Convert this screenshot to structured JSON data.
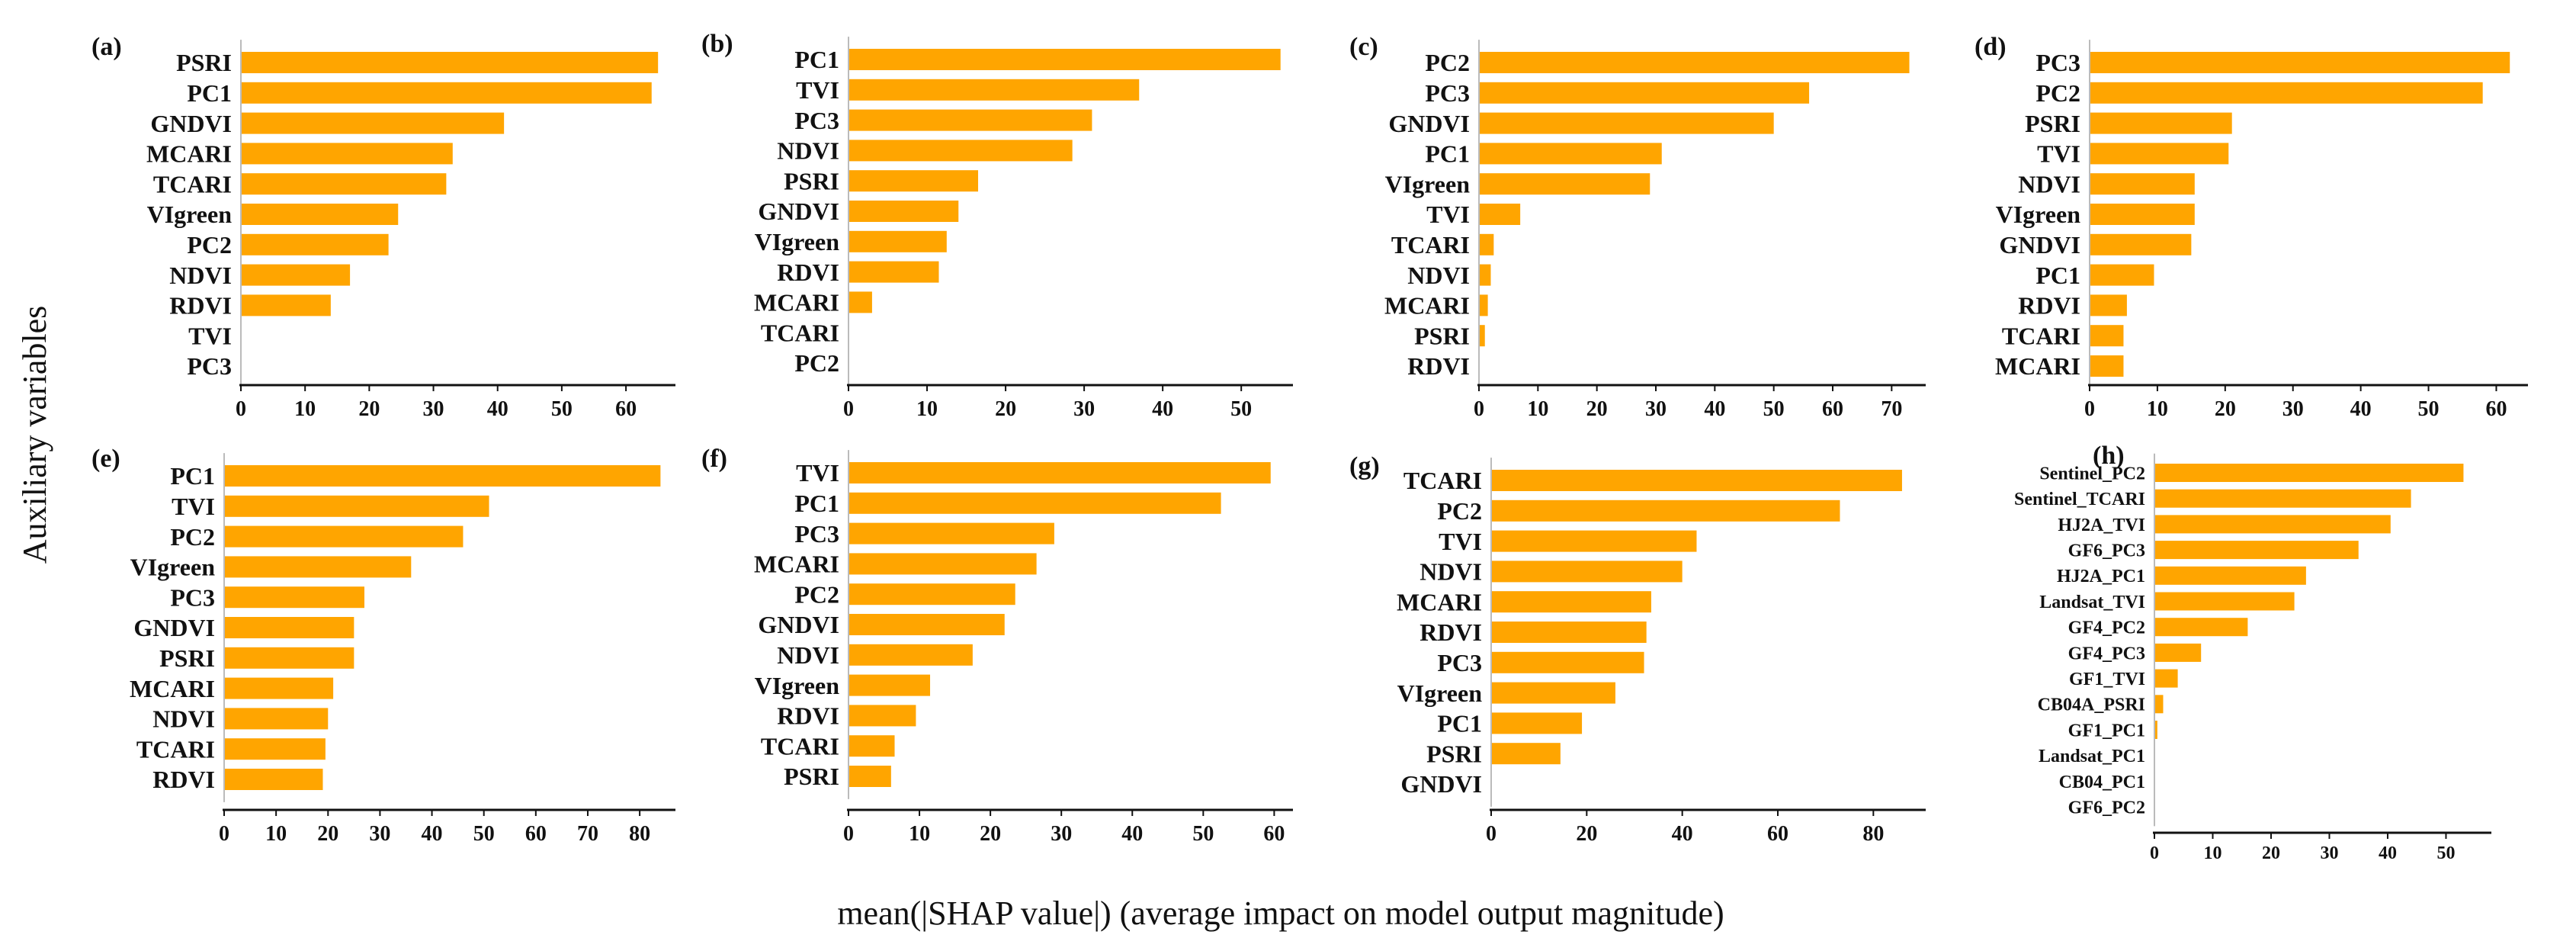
{
  "figure": {
    "ylabel": "Auxiliary variables",
    "xlabel": "mean(|SHAP value|) (average impact on model output magnitude)",
    "bar_color": "#FFA500",
    "axis_color": "#111111"
  },
  "chart_data": [
    {
      "type": "bar",
      "orientation": "horizontal",
      "panel": "(a)",
      "categories": [
        "PSRI",
        "PC1",
        "GNDVI",
        "MCARI",
        "TCARI",
        "VIgreen",
        "PC2",
        "NDVI",
        "RDVI",
        "TVI",
        "PC3"
      ],
      "values": [
        65,
        64,
        41,
        33,
        32,
        24.5,
        23,
        17,
        14,
        0,
        0
      ],
      "xlim": [
        0,
        67
      ],
      "xticks": [
        0,
        10,
        20,
        30,
        40,
        50,
        60
      ]
    },
    {
      "type": "bar",
      "orientation": "horizontal",
      "panel": "(b)",
      "categories": [
        "PC1",
        "TVI",
        "PC3",
        "NDVI",
        "PSRI",
        "GNDVI",
        "VIgreen",
        "RDVI",
        "MCARI",
        "TCARI",
        "PC2"
      ],
      "values": [
        55,
        37,
        31,
        28.5,
        16.5,
        14,
        12.5,
        11.5,
        3,
        0,
        0
      ],
      "xlim": [
        0,
        56
      ],
      "xticks": [
        0,
        10,
        20,
        30,
        40,
        50
      ]
    },
    {
      "type": "bar",
      "orientation": "horizontal",
      "panel": "(c)",
      "categories": [
        "PC2",
        "PC3",
        "GNDVI",
        "PC1",
        "VIgreen",
        "TVI",
        "TCARI",
        "NDVI",
        "MCARI",
        "PSRI",
        "RDVI"
      ],
      "values": [
        73,
        56,
        50,
        31,
        29,
        7,
        2.5,
        2,
        1.5,
        1,
        0
      ],
      "xlim": [
        0,
        75
      ],
      "xticks": [
        0,
        10,
        20,
        30,
        40,
        50,
        60,
        70
      ]
    },
    {
      "type": "bar",
      "orientation": "horizontal",
      "panel": "(d)",
      "categories": [
        "PC3",
        "PC2",
        "PSRI",
        "TVI",
        "NDVI",
        "VIgreen",
        "GNDVI",
        "PC1",
        "RDVI",
        "TCARI",
        "MCARI"
      ],
      "values": [
        62,
        58,
        21,
        20.5,
        15.5,
        15.5,
        15,
        9.5,
        5.5,
        5,
        5
      ],
      "xlim": [
        0,
        64
      ],
      "xticks": [
        0,
        10,
        20,
        30,
        40,
        50,
        60
      ]
    },
    {
      "type": "bar",
      "orientation": "horizontal",
      "panel": "(e)",
      "categories": [
        "PC1",
        "TVI",
        "PC2",
        "VIgreen",
        "PC3",
        "GNDVI",
        "PSRI",
        "MCARI",
        "NDVI",
        "TCARI",
        "RDVI"
      ],
      "values": [
        84,
        51,
        46,
        36,
        27,
        25,
        25,
        21,
        20,
        19.5,
        19
      ],
      "xlim": [
        0,
        86
      ],
      "xticks": [
        0,
        10,
        20,
        30,
        40,
        50,
        60,
        70,
        80
      ]
    },
    {
      "type": "bar",
      "orientation": "horizontal",
      "panel": "(f)",
      "categories": [
        "TVI",
        "PC1",
        "PC3",
        "MCARI",
        "PC2",
        "GNDVI",
        "NDVI",
        "VIgreen",
        "RDVI",
        "TCARI",
        "PSRI"
      ],
      "values": [
        59.5,
        52.5,
        29,
        26.5,
        23.5,
        22,
        17.5,
        11.5,
        9.5,
        6.5,
        6
      ],
      "xlim": [
        0,
        62
      ],
      "xticks": [
        0,
        10,
        20,
        30,
        40,
        50,
        60
      ]
    },
    {
      "type": "bar",
      "orientation": "horizontal",
      "panel": "(g)",
      "categories": [
        "TCARI",
        "PC2",
        "TVI",
        "NDVI",
        "MCARI",
        "RDVI",
        "PC3",
        "VIgreen",
        "PC1",
        "PSRI",
        "GNDVI"
      ],
      "values": [
        86,
        73,
        43,
        40,
        33.5,
        32.5,
        32,
        26,
        19,
        14.5,
        0
      ],
      "xlim": [
        0,
        90
      ],
      "xticks": [
        0,
        20,
        40,
        60,
        80
      ]
    },
    {
      "type": "bar",
      "orientation": "horizontal",
      "panel": "(h)",
      "categories": [
        "Sentinel_PC2",
        "Sentinel_TCARI",
        "HJ2A_TVI",
        "GF6_PC3",
        "HJ2A_PC1",
        "Landsat_TVI",
        "GF4_PC2",
        "GF4_PC3",
        "GF1_TVI",
        "CB04A_PSRI",
        "GF1_PC1",
        "Landsat_PC1",
        "CB04_PC1",
        "GF6_PC2"
      ],
      "values": [
        53,
        44,
        40.5,
        35,
        26,
        24,
        16,
        8,
        4,
        1.5,
        0.5,
        0,
        0,
        0
      ],
      "xlim": [
        0,
        57
      ],
      "xticks": [
        0,
        10,
        20,
        30,
        40,
        50
      ]
    }
  ]
}
